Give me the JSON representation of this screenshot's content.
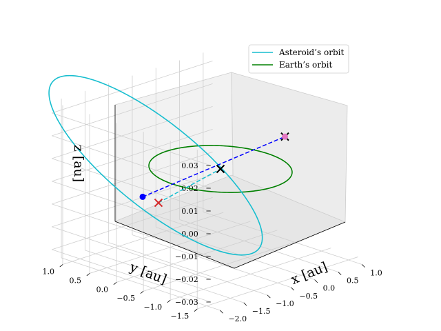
{
  "chart_data": {
    "type": "line",
    "projection": "3d",
    "xlabel": "x [au]",
    "ylabel": "y [au]",
    "zlabel": "z [au]",
    "xlim": [
      -2.2,
      1.2
    ],
    "ylim": [
      -1.75,
      1.2
    ],
    "zlim": [
      -0.035,
      0.035
    ],
    "x_ticks": [
      "−2.0",
      "−1.5",
      "−1.0",
      "−0.5",
      "0.0",
      "0.5",
      "1.0"
    ],
    "y_ticks": [
      "1.0",
      "0.5",
      "0.0",
      "−0.5",
      "−1.0",
      "−1.5"
    ],
    "z_ticks": [
      "0.03",
      "0.02",
      "0.01",
      "0.00",
      "−0.01",
      "−0.02",
      "−0.03"
    ],
    "grid": true,
    "legend_position": "top-right",
    "series": [
      {
        "name": "Asteroid’s orbit",
        "color": "#17becf",
        "ellipse": {
          "semi_major_au": 1.6,
          "eccentricity": 0.49,
          "inclination_deg": 1.1
        }
      },
      {
        "name": "Earth’s orbit",
        "color": "#008000",
        "ellipse": {
          "semi_major_au": 1.0,
          "eccentricity": 0.0,
          "inclination_deg": 0.0
        }
      }
    ],
    "markers": [
      {
        "marker": "x",
        "color": "#000000",
        "x": 0.0,
        "y": 0.0,
        "z": 0.0
      },
      {
        "marker": "x",
        "color": "#000000",
        "x": 0.85,
        "y": -0.45,
        "z": 0.012
      },
      {
        "marker": "dot",
        "color": "#e377c2",
        "x": 0.85,
        "y": -0.45,
        "z": 0.012
      },
      {
        "marker": "x",
        "color": "#d62728",
        "x": -0.8,
        "y": 0.45,
        "z": -0.013
      },
      {
        "marker": "dot",
        "color": "#0000ff",
        "x": -0.85,
        "y": 0.7,
        "z": -0.012
      }
    ],
    "lines": [
      {
        "style": "dashed",
        "color": "#0000ff",
        "from": [
          -0.85,
          0.7,
          -0.012
        ],
        "to": [
          0.85,
          -0.45,
          0.012
        ]
      },
      {
        "style": "dashed",
        "color": "#17becf",
        "from": [
          -0.8,
          0.45,
          -0.013
        ],
        "to": [
          0.0,
          0.0,
          0.0
        ]
      }
    ]
  }
}
